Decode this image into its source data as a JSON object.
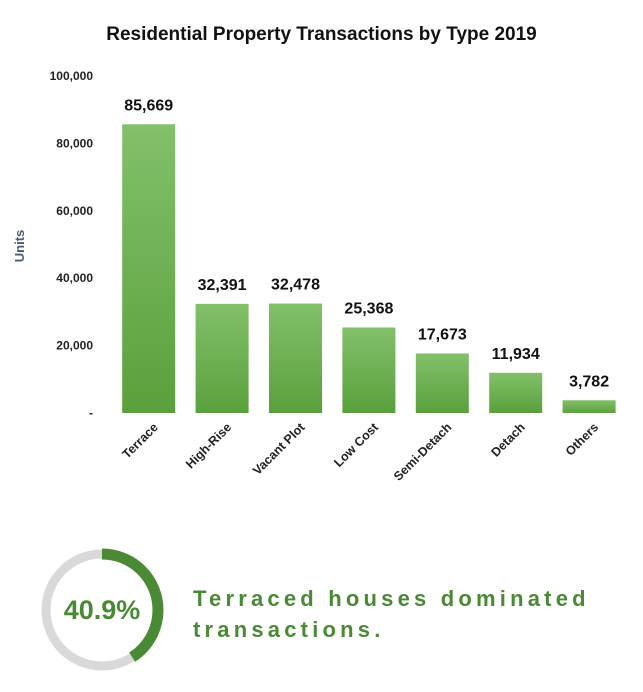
{
  "chart_data": {
    "type": "bar",
    "title": "Residential Property Transactions by Type 2019",
    "ylabel": "Units",
    "xlabel": "",
    "categories": [
      "Terrace",
      "High-Rise",
      "Vacant Plot",
      "Low Cost",
      "Semi-Detach",
      "Detach",
      "Others"
    ],
    "values": [
      85669,
      32391,
      32478,
      25368,
      17673,
      11934,
      3782
    ],
    "data_labels": [
      "85,669",
      "32,391",
      "32,478",
      "25,368",
      "17,673",
      "11,934",
      "3,782"
    ],
    "ylim": [
      0,
      100000
    ],
    "y_ticks": [
      0,
      20000,
      40000,
      60000,
      80000,
      100000
    ],
    "y_tick_labels": [
      "-",
      "20,000",
      "40,000",
      "60,000",
      "80,000",
      "100,000"
    ],
    "grid": false,
    "legend": "none",
    "bar_color": "#6ab04c"
  },
  "highlight": {
    "percent": 40.9,
    "percent_label": "40.9%",
    "text": "Terraced houses dominated transactions.",
    "ring_color": "#4a8a35",
    "track_color": "#d9d9d9"
  }
}
